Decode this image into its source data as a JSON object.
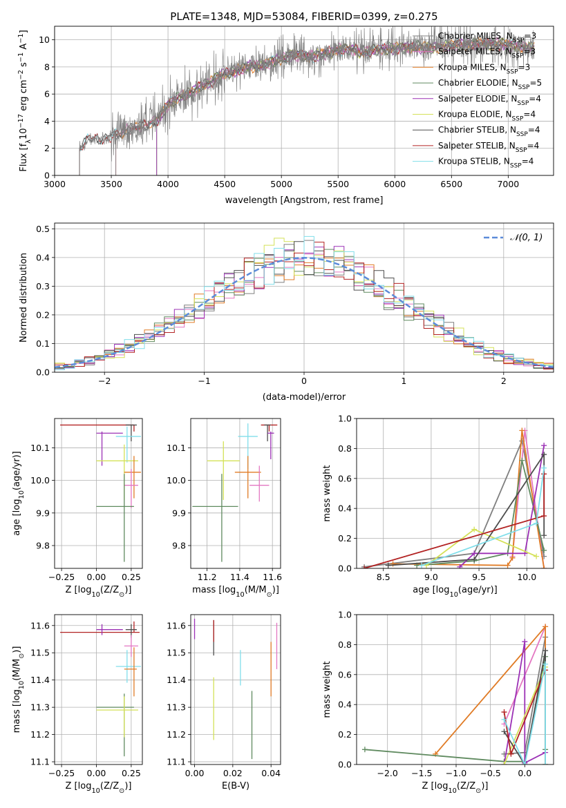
{
  "figure_title": "PLATE=1348, MJD=53084, FIBERID=0399, z=0.275",
  "colors": {
    "chabrier_miles": "#7f7f7f",
    "salpeter_miles": "#e377c2",
    "kroupa_miles": "#e07b25",
    "chabrier_elodie": "#5f8a5f",
    "salpeter_elodie": "#9b30b5",
    "kroupa_elodie": "#d4e157",
    "chabrier_stelib": "#4d4d4d",
    "salpeter_stelib": "#b22222",
    "kroupa_stelib": "#80deea",
    "gauss": "#5b8bd9",
    "grid": "#b0b0b0"
  },
  "chart_data": [
    {
      "id": "spectrum",
      "type": "line",
      "title": "PLATE=1348, MJD=53084, FIBERID=0399, z=0.275",
      "xlabel": "wavelength [Angstrom, rest frame]",
      "ylabel_parts": [
        "Flux [f",
        "λ",
        "10",
        "−17",
        " erg cm",
        "−2",
        " s",
        "−1",
        " A",
        "−1",
        "]"
      ],
      "xlim": [
        3000,
        7400
      ],
      "ylim": [
        0,
        11
      ],
      "xticks": [
        "3000",
        "3500",
        "4000",
        "4500",
        "5000",
        "5500",
        "6000",
        "6500",
        "7000"
      ],
      "yticks": [
        "0",
        "2",
        "4",
        "6",
        "8",
        "10"
      ],
      "legend_position": "top-right",
      "legend": [
        {
          "color_key": "chabrier_miles",
          "base": "Chabrier MILES, N",
          "sub": "SSP",
          "tail": "=3"
        },
        {
          "color_key": "salpeter_miles",
          "base": "Salpeter MILES, N",
          "sub": "SSP",
          "tail": "=3"
        },
        {
          "color_key": "kroupa_miles",
          "base": "Kroupa MILES, N",
          "sub": "SSP",
          "tail": "=3"
        },
        {
          "color_key": "chabrier_elodie",
          "base": "Chabrier ELODIE, N",
          "sub": "SSP",
          "tail": "=5"
        },
        {
          "color_key": "salpeter_elodie",
          "base": "Salpeter ELODIE, N",
          "sub": "SSP",
          "tail": "=4"
        },
        {
          "color_key": "kroupa_elodie",
          "base": "Kroupa ELODIE, N",
          "sub": "SSP",
          "tail": "=4"
        },
        {
          "color_key": "chabrier_stelib",
          "base": "Chabrier STELIB, N",
          "sub": "SSP",
          "tail": "=4"
        },
        {
          "color_key": "salpeter_stelib",
          "base": "Salpeter STELIB, N",
          "sub": "SSP",
          "tail": "=4"
        },
        {
          "color_key": "kroupa_stelib",
          "base": "Kroupa STELIB, N",
          "sub": "SSP",
          "tail": "=4"
        }
      ],
      "data_anchors": {
        "x": [
          3220,
          3300,
          3400,
          3500,
          3600,
          3700,
          3800,
          3900,
          4000,
          4100,
          4200,
          4300,
          4400,
          4500,
          4600,
          4700,
          4800,
          4900,
          5000,
          5100,
          5200,
          5300,
          5400,
          5500,
          5600,
          5700,
          5800,
          5900,
          6000,
          6100,
          6200,
          6300,
          6400,
          6500,
          6600,
          6700,
          6800,
          6900,
          7000,
          7100,
          7200
        ],
        "y": [
          2.0,
          2.7,
          2.7,
          2.8,
          3.2,
          3.5,
          3.7,
          4.0,
          5.2,
          5.8,
          6.1,
          6.6,
          7.0,
          7.5,
          7.7,
          8.0,
          8.1,
          8.3,
          8.6,
          8.9,
          8.8,
          8.8,
          9.0,
          9.3,
          9.3,
          9.1,
          9.2,
          9.3,
          9.4,
          9.4,
          9.5,
          9.4,
          9.5,
          9.6,
          9.6,
          9.7,
          9.7,
          9.7,
          9.6,
          9.5,
          9.4
        ]
      },
      "model_starts": {
        "chabrier_miles": 3540,
        "salpeter_miles": 3540,
        "kroupa_miles": 3540,
        "chabrier_elodie": 3900,
        "salpeter_elodie": 3900,
        "kroupa_elodie": 3900,
        "chabrier_stelib": 3220,
        "salpeter_stelib": 3220,
        "kroupa_stelib": 3220
      }
    },
    {
      "id": "residuals",
      "type": "histogram",
      "xlabel": "(data-model)/error",
      "ylabel": "Normed distribution",
      "xlim": [
        -2.5,
        2.5
      ],
      "ylim": [
        0,
        0.52
      ],
      "xticks": [
        "−2",
        "−1",
        "0",
        "1",
        "2"
      ],
      "yticks": [
        "0.0",
        "0.1",
        "0.2",
        "0.3",
        "0.4",
        "0.5"
      ],
      "legend_position": "top-right",
      "legend": {
        "label": "𝒩(0, 1)",
        "color_key": "gauss"
      },
      "bin_width": 0.1
    },
    {
      "id": "age_vs_Z",
      "type": "errorbar",
      "xlabel_parts": [
        "Z [log",
        "10",
        "(Z/Z",
        "⊙",
        ")]"
      ],
      "ylabel_parts": [
        "age  [log",
        "10",
        "(age/yr)]"
      ],
      "xlim": [
        -0.3,
        0.33
      ],
      "ylim": [
        9.73,
        10.19
      ],
      "xticks": [
        "−0.25",
        "0.00",
        "0.25"
      ],
      "yticks": [
        "9.8",
        "9.9",
        "10.0",
        "10.1"
      ],
      "points": [
        {
          "color_key": "salpeter_stelib",
          "x": 0.27,
          "xerr": [
            0.53,
            0.0
          ],
          "y": 10.17,
          "yerr": [
            0.02,
            0.0
          ]
        },
        {
          "color_key": "chabrier_stelib",
          "x": 0.25,
          "xerr": [
            0.04,
            0.04
          ],
          "y": 10.17,
          "yerr": [
            0.05,
            0.0
          ]
        },
        {
          "color_key": "salpeter_elodie",
          "x": 0.04,
          "xerr": [
            0.04,
            0.15
          ],
          "y": 10.145,
          "yerr": [
            0.1,
            0.005
          ]
        },
        {
          "color_key": "kroupa_stelib",
          "x": 0.22,
          "xerr": [
            0.08,
            0.1
          ],
          "y": 10.135,
          "yerr": [
            0.08,
            0.03
          ]
        },
        {
          "color_key": "kroupa_elodie",
          "x": 0.2,
          "xerr": [
            0.2,
            0.1
          ],
          "y": 10.06,
          "yerr": [
            0.12,
            0.05
          ]
        },
        {
          "color_key": "kroupa_miles",
          "x": 0.27,
          "xerr": [
            0.07,
            0.05
          ],
          "y": 10.025,
          "yerr": [
            0.08,
            0.05
          ]
        },
        {
          "color_key": "salpeter_miles",
          "x": 0.25,
          "xerr": [
            0.05,
            0.05
          ],
          "y": 9.985,
          "yerr": [
            0.07,
            0.05
          ]
        },
        {
          "color_key": "chabrier_elodie",
          "x": 0.2,
          "xerr": [
            0.2,
            0.07
          ],
          "y": 9.92,
          "yerr": [
            0.17,
            0.1
          ]
        }
      ]
    },
    {
      "id": "age_vs_mass",
      "type": "errorbar",
      "xlabel_parts": [
        "mass [log",
        "10",
        "(M/M",
        "⊙",
        ")]"
      ],
      "xlim": [
        11.1,
        11.65
      ],
      "ylim": [
        9.73,
        10.19
      ],
      "xticks": [
        "11.2",
        "11.4",
        "11.6"
      ],
      "yticks": [
        "9.8",
        "9.9",
        "10.0",
        "10.1"
      ],
      "points": [
        {
          "color_key": "salpeter_stelib",
          "x": 11.58,
          "xerr": [
            0.05,
            0.05
          ],
          "y": 10.17,
          "yerr": [
            0.02,
            0.0
          ]
        },
        {
          "color_key": "chabrier_stelib",
          "x": 11.57,
          "xerr": [
            0.02,
            0.02
          ],
          "y": 10.17,
          "yerr": [
            0.05,
            0.0
          ]
        },
        {
          "color_key": "salpeter_elodie",
          "x": 11.59,
          "xerr": [
            0.02,
            0.02
          ],
          "y": 10.145,
          "yerr": [
            0.08,
            0.005
          ]
        },
        {
          "color_key": "kroupa_stelib",
          "x": 11.45,
          "xerr": [
            0.06,
            0.06
          ],
          "y": 10.135,
          "yerr": [
            0.1,
            0.04
          ]
        },
        {
          "color_key": "kroupa_elodie",
          "x": 11.3,
          "xerr": [
            0.1,
            0.1
          ],
          "y": 10.06,
          "yerr": [
            0.12,
            0.06
          ]
        },
        {
          "color_key": "kroupa_miles",
          "x": 11.45,
          "xerr": [
            0.08,
            0.08
          ],
          "y": 10.025,
          "yerr": [
            0.08,
            0.05
          ]
        },
        {
          "color_key": "salpeter_miles",
          "x": 11.52,
          "xerr": [
            0.06,
            0.06
          ],
          "y": 9.985,
          "yerr": [
            0.05,
            0.06
          ]
        },
        {
          "color_key": "chabrier_elodie",
          "x": 11.29,
          "xerr": [
            0.18,
            0.1
          ],
          "y": 9.92,
          "yerr": [
            0.17,
            0.1
          ]
        }
      ]
    },
    {
      "id": "weight_vs_age",
      "type": "line",
      "xlabel_parts": [
        "age  [log",
        "10",
        "(age/yr)]"
      ],
      "ylabel": "mass weight",
      "xlim": [
        8.22,
        10.28
      ],
      "ylim": [
        0,
        1
      ],
      "xticks": [
        "8.5",
        "9.0",
        "9.5",
        "10.0"
      ],
      "yticks": [
        "0.0",
        "0.2",
        "0.4",
        "0.6",
        "0.8",
        "1.0"
      ],
      "series": [
        {
          "color_key": "chabrier_miles",
          "x": [
            8.3,
            9.45,
            9.95,
            10.18
          ],
          "y": [
            0.01,
            0.1,
            0.85,
            0.08
          ]
        },
        {
          "color_key": "salpeter_miles",
          "x": [
            9.85,
            9.85,
            9.98,
            10.18
          ],
          "y": [
            0.07,
            0.08,
            0.92,
            0.0
          ]
        },
        {
          "color_key": "kroupa_miles",
          "x": [
            8.6,
            9.8,
            9.85,
            9.95,
            10.18
          ],
          "y": [
            0.03,
            0.02,
            0.07,
            0.92,
            0.0
          ]
        },
        {
          "color_key": "chabrier_elodie",
          "x": [
            8.85,
            9.45,
            9.8,
            9.95,
            10.18
          ],
          "y": [
            0.02,
            0.05,
            0.1,
            0.72,
            0.12
          ]
        },
        {
          "color_key": "salpeter_elodie",
          "x": [
            9.3,
            9.45,
            9.98,
            10.18
          ],
          "y": [
            0.01,
            0.1,
            0.1,
            0.82
          ]
        },
        {
          "color_key": "kroupa_elodie",
          "x": [
            8.95,
            9.45,
            10.1
          ],
          "y": [
            0.02,
            0.26,
            0.08
          ]
        },
        {
          "color_key": "chabrier_stelib",
          "x": [
            8.55,
            9.45,
            10.18,
            10.18
          ],
          "y": [
            0.02,
            0.06,
            0.76,
            0.22
          ]
        },
        {
          "color_key": "salpeter_stelib",
          "x": [
            8.3,
            10.18,
            10.18
          ],
          "y": [
            0.0,
            0.35,
            0.63
          ]
        },
        {
          "color_key": "kroupa_stelib",
          "x": [
            8.9,
            10.1,
            10.18
          ],
          "y": [
            0.02,
            0.3,
            0.67
          ]
        }
      ]
    },
    {
      "id": "mass_vs_Z",
      "type": "errorbar",
      "xlabel_parts": [
        "Z [log",
        "10",
        "(Z/Z",
        "⊙",
        ")]"
      ],
      "ylabel_parts": [
        "mass [log",
        "10",
        "(M/M",
        "⊙",
        ")]"
      ],
      "xlim": [
        -0.3,
        0.33
      ],
      "ylim": [
        11.09,
        11.64
      ],
      "xticks": [
        "−0.25",
        "0.00",
        "0.25"
      ],
      "yticks": [
        "11.1",
        "11.2",
        "11.3",
        "11.4",
        "11.5",
        "11.6"
      ],
      "points": [
        {
          "color_key": "salpeter_stelib",
          "x": 0.27,
          "xerr": [
            0.53,
            0.04
          ],
          "y": 11.575,
          "yerr": [
            0.0,
            0.04
          ]
        },
        {
          "color_key": "salpeter_elodie",
          "x": 0.04,
          "xerr": [
            0.04,
            0.15
          ],
          "y": 11.585,
          "yerr": [
            0.02,
            0.02
          ]
        },
        {
          "color_key": "chabrier_stelib",
          "x": 0.25,
          "xerr": [
            0.04,
            0.04
          ],
          "y": 11.585,
          "yerr": [
            0.03,
            0.02
          ]
        },
        {
          "color_key": "salpeter_miles",
          "x": 0.25,
          "xerr": [
            0.05,
            0.05
          ],
          "y": 11.525,
          "yerr": [
            0.04,
            0.04
          ]
        },
        {
          "color_key": "kroupa_stelib",
          "x": 0.22,
          "xerr": [
            0.08,
            0.1
          ],
          "y": 11.45,
          "yerr": [
            0.06,
            0.06
          ]
        },
        {
          "color_key": "kroupa_miles",
          "x": 0.27,
          "xerr": [
            0.07,
            0.02
          ],
          "y": 11.44,
          "yerr": [
            0.1,
            0.08
          ]
        },
        {
          "color_key": "chabrier_elodie",
          "x": 0.2,
          "xerr": [
            0.2,
            0.07
          ],
          "y": 11.3,
          "yerr": [
            0.18,
            0.05
          ]
        },
        {
          "color_key": "kroupa_elodie",
          "x": 0.2,
          "xerr": [
            0.2,
            0.1
          ],
          "y": 11.29,
          "yerr": [
            0.1,
            0.05
          ]
        }
      ]
    },
    {
      "id": "mass_vs_ebv",
      "type": "errorbar",
      "xlabel": "E(B-V)",
      "xlim": [
        -0.002,
        0.045
      ],
      "ylim": [
        11.09,
        11.64
      ],
      "xticks": [
        "0.00",
        "0.02",
        "0.04"
      ],
      "yticks": [
        "11.1",
        "11.2",
        "11.3",
        "11.4",
        "11.5",
        "11.6"
      ],
      "points": [
        {
          "color_key": "salpeter_elodie",
          "x": 0.0,
          "y": 11.585,
          "yerr": [
            0.035,
            0.04
          ]
        },
        {
          "color_key": "chabrier_stelib",
          "x": 0.01,
          "y": 11.56,
          "yerr": [
            0.07,
            0.06
          ]
        },
        {
          "color_key": "salpeter_stelib",
          "x": 0.01,
          "y": 11.58,
          "yerr": [
            0.04,
            0.04
          ]
        },
        {
          "color_key": "kroupa_stelib",
          "x": 0.024,
          "y": 11.45,
          "yerr": [
            0.07,
            0.06
          ]
        },
        {
          "color_key": "kroupa_elodie",
          "x": 0.01,
          "y": 11.3,
          "yerr": [
            0.12,
            0.11
          ]
        },
        {
          "color_key": "chabrier_elodie",
          "x": 0.03,
          "y": 11.23,
          "yerr": [
            0.12,
            0.13
          ]
        },
        {
          "color_key": "kroupa_miles",
          "x": 0.04,
          "y": 11.44,
          "yerr": [
            0.1,
            0.1
          ]
        },
        {
          "color_key": "salpeter_miles",
          "x": 0.043,
          "y": 11.53,
          "yerr": [
            0.09,
            0.08
          ]
        }
      ]
    },
    {
      "id": "weight_vs_Z",
      "type": "line",
      "xlabel_parts": [
        "Z [log",
        "10",
        "(Z/Z",
        "⊙",
        ")]"
      ],
      "ylabel": "mass weight",
      "xlim": [
        -2.45,
        0.42
      ],
      "ylim": [
        0,
        1
      ],
      "xticks": [
        "−2.0",
        "−1.5",
        "−1.0",
        "−0.5",
        "0.0"
      ],
      "yticks": [
        "0.0",
        "0.2",
        "0.4",
        "0.6",
        "0.8",
        "1.0"
      ],
      "series": [
        {
          "color_key": "chabrier_miles",
          "x": [
            -0.3,
            0.0,
            0.3
          ],
          "y": [
            0.07,
            0.08,
            0.85
          ]
        },
        {
          "color_key": "salpeter_miles",
          "x": [
            -0.3,
            0.3
          ],
          "y": [
            0.27,
            0.92
          ]
        },
        {
          "color_key": "kroupa_miles",
          "x": [
            -1.3,
            0.3,
            0.3
          ],
          "y": [
            0.07,
            0.92,
            0.0
          ]
        },
        {
          "color_key": "chabrier_elodie",
          "x": [
            -2.33,
            -0.3,
            0.0,
            0.3,
            0.3
          ],
          "y": [
            0.1,
            0.02,
            0.02,
            0.72,
            0.1
          ]
        },
        {
          "color_key": "salpeter_elodie",
          "x": [
            -0.3,
            0.0,
            0.0,
            0.3
          ],
          "y": [
            0.0,
            0.82,
            0.01,
            0.08
          ]
        },
        {
          "color_key": "kroupa_elodie",
          "x": [
            -0.3,
            0.3
          ],
          "y": [
            0.0,
            0.65
          ]
        },
        {
          "color_key": "chabrier_stelib",
          "x": [
            -0.3,
            0.0,
            0.3,
            0.3
          ],
          "y": [
            0.22,
            0.0,
            0.76,
            0.0
          ]
        },
        {
          "color_key": "salpeter_stelib",
          "x": [
            -0.3,
            -0.2,
            0.3
          ],
          "y": [
            0.35,
            0.07,
            0.63
          ]
        },
        {
          "color_key": "kroupa_stelib",
          "x": [
            -0.3,
            0.0,
            0.3,
            0.3
          ],
          "y": [
            0.3,
            0.0,
            0.67,
            0.0
          ]
        }
      ]
    }
  ]
}
